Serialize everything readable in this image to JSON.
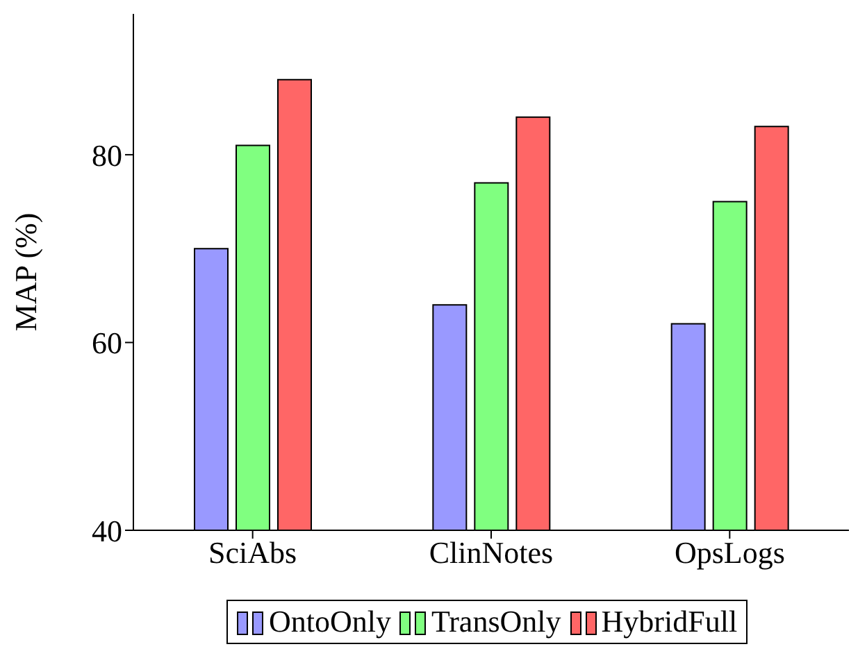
{
  "chart_data": {
    "type": "bar",
    "ylabel": "MAP (%)",
    "categories": [
      "SciAbs",
      "ClinNotes",
      "OpsLogs"
    ],
    "series": [
      {
        "name": "OntoOnly",
        "color": "#9999ff",
        "values": [
          70,
          64,
          62
        ]
      },
      {
        "name": "TransOnly",
        "color": "#80ff80",
        "values": [
          81,
          77,
          75
        ]
      },
      {
        "name": "HybridFull",
        "color": "#ff6666",
        "values": [
          88,
          84,
          83
        ]
      }
    ],
    "ylim": [
      40,
      95
    ],
    "yticks": [
      40,
      60,
      80
    ],
    "grid": false,
    "legend": "bottom"
  }
}
